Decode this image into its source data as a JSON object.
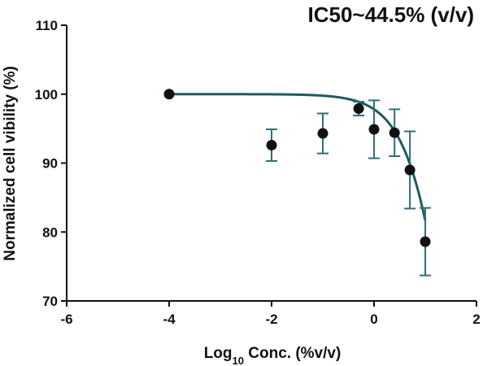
{
  "chart_data": {
    "type": "scatter",
    "title": "IC50~44.5% (v/v)",
    "xlabel": "Log10 Conc. (%v/v)",
    "ylabel": "Normalized cell vibility (%)",
    "xlim": [
      -6,
      2
    ],
    "ylim": [
      70,
      110
    ],
    "x_ticks": [
      -6,
      -4,
      -2,
      0,
      2
    ],
    "y_ticks": [
      70,
      80,
      90,
      100,
      110
    ],
    "x_tick_labels": [
      "-6",
      "-4",
      "-2",
      "0",
      "2"
    ],
    "y_tick_labels": [
      "70",
      "80",
      "90",
      "100",
      "110"
    ],
    "grid": false,
    "legend": "none",
    "points": [
      {
        "x": -4.0,
        "y": 100.0,
        "err": 0
      },
      {
        "x": -2.0,
        "y": 92.6,
        "err": 2.3
      },
      {
        "x": -1.0,
        "y": 94.3,
        "err": 2.9
      },
      {
        "x": -0.3,
        "y": 97.9,
        "err": 1.0
      },
      {
        "x": 0.0,
        "y": 94.9,
        "err": 4.2
      },
      {
        "x": 0.4,
        "y": 94.4,
        "err": 3.4
      },
      {
        "x": 0.7,
        "y": 89.0,
        "err": 5.6
      },
      {
        "x": 1.0,
        "y": 78.6,
        "err": 4.9
      }
    ],
    "fit_curve": {
      "model": "normalized dose-response",
      "top": 100,
      "bottom": 0,
      "log_ic50": 1.648,
      "hill_slope": -1.0
    },
    "colors": {
      "points": "#111111",
      "fit_line": "#1f5a63",
      "error_bars": "#2f6f79",
      "axes": "#111111"
    }
  }
}
